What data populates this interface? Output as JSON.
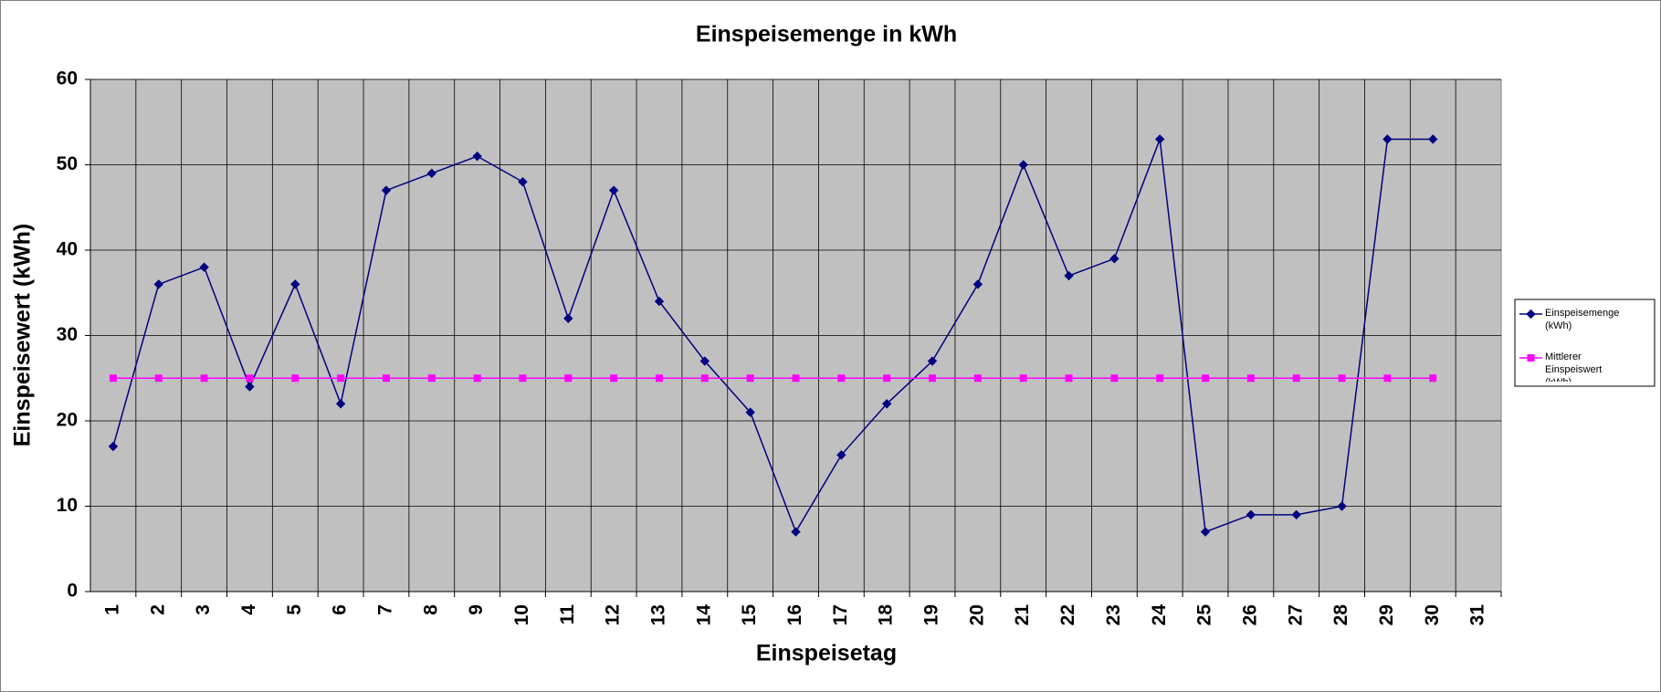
{
  "chart_data": {
    "type": "line",
    "title": "Einspeisemenge in kWh",
    "x_label": "Einspeisetag",
    "y_label": "Einspeisewert  (kWh)",
    "categories": [
      "1",
      "2",
      "3",
      "4",
      "5",
      "6",
      "7",
      "8",
      "9",
      "10",
      "11",
      "12",
      "13",
      "14",
      "15",
      "16",
      "17",
      "18",
      "19",
      "20",
      "21",
      "22",
      "23",
      "24",
      "25",
      "26",
      "27",
      "28",
      "29",
      "30",
      "31"
    ],
    "series": [
      {
        "name": "Einspeisemenge (kWh)",
        "color": "#000080",
        "marker": "diamond",
        "values": [
          17,
          36,
          38,
          24,
          36,
          22,
          47,
          49,
          51,
          48,
          32,
          47,
          34,
          27,
          21,
          7,
          16,
          22,
          27,
          36,
          50,
          37,
          39,
          53,
          7,
          9,
          9,
          10,
          53,
          53,
          null
        ]
      },
      {
        "name": "Mittlerer Einspeiswert (kWh)",
        "color": "#ff00ff",
        "marker": "square",
        "values": [
          25,
          25,
          25,
          25,
          25,
          25,
          25,
          25,
          25,
          25,
          25,
          25,
          25,
          25,
          25,
          25,
          25,
          25,
          25,
          25,
          25,
          25,
          25,
          25,
          25,
          25,
          25,
          25,
          25,
          25,
          null
        ]
      }
    ],
    "ylim": [
      0,
      60
    ],
    "yticks": [
      0,
      10,
      20,
      30,
      40,
      50,
      60
    ],
    "grid": true,
    "plot_background": "#c0c0c0",
    "legend": "right"
  }
}
